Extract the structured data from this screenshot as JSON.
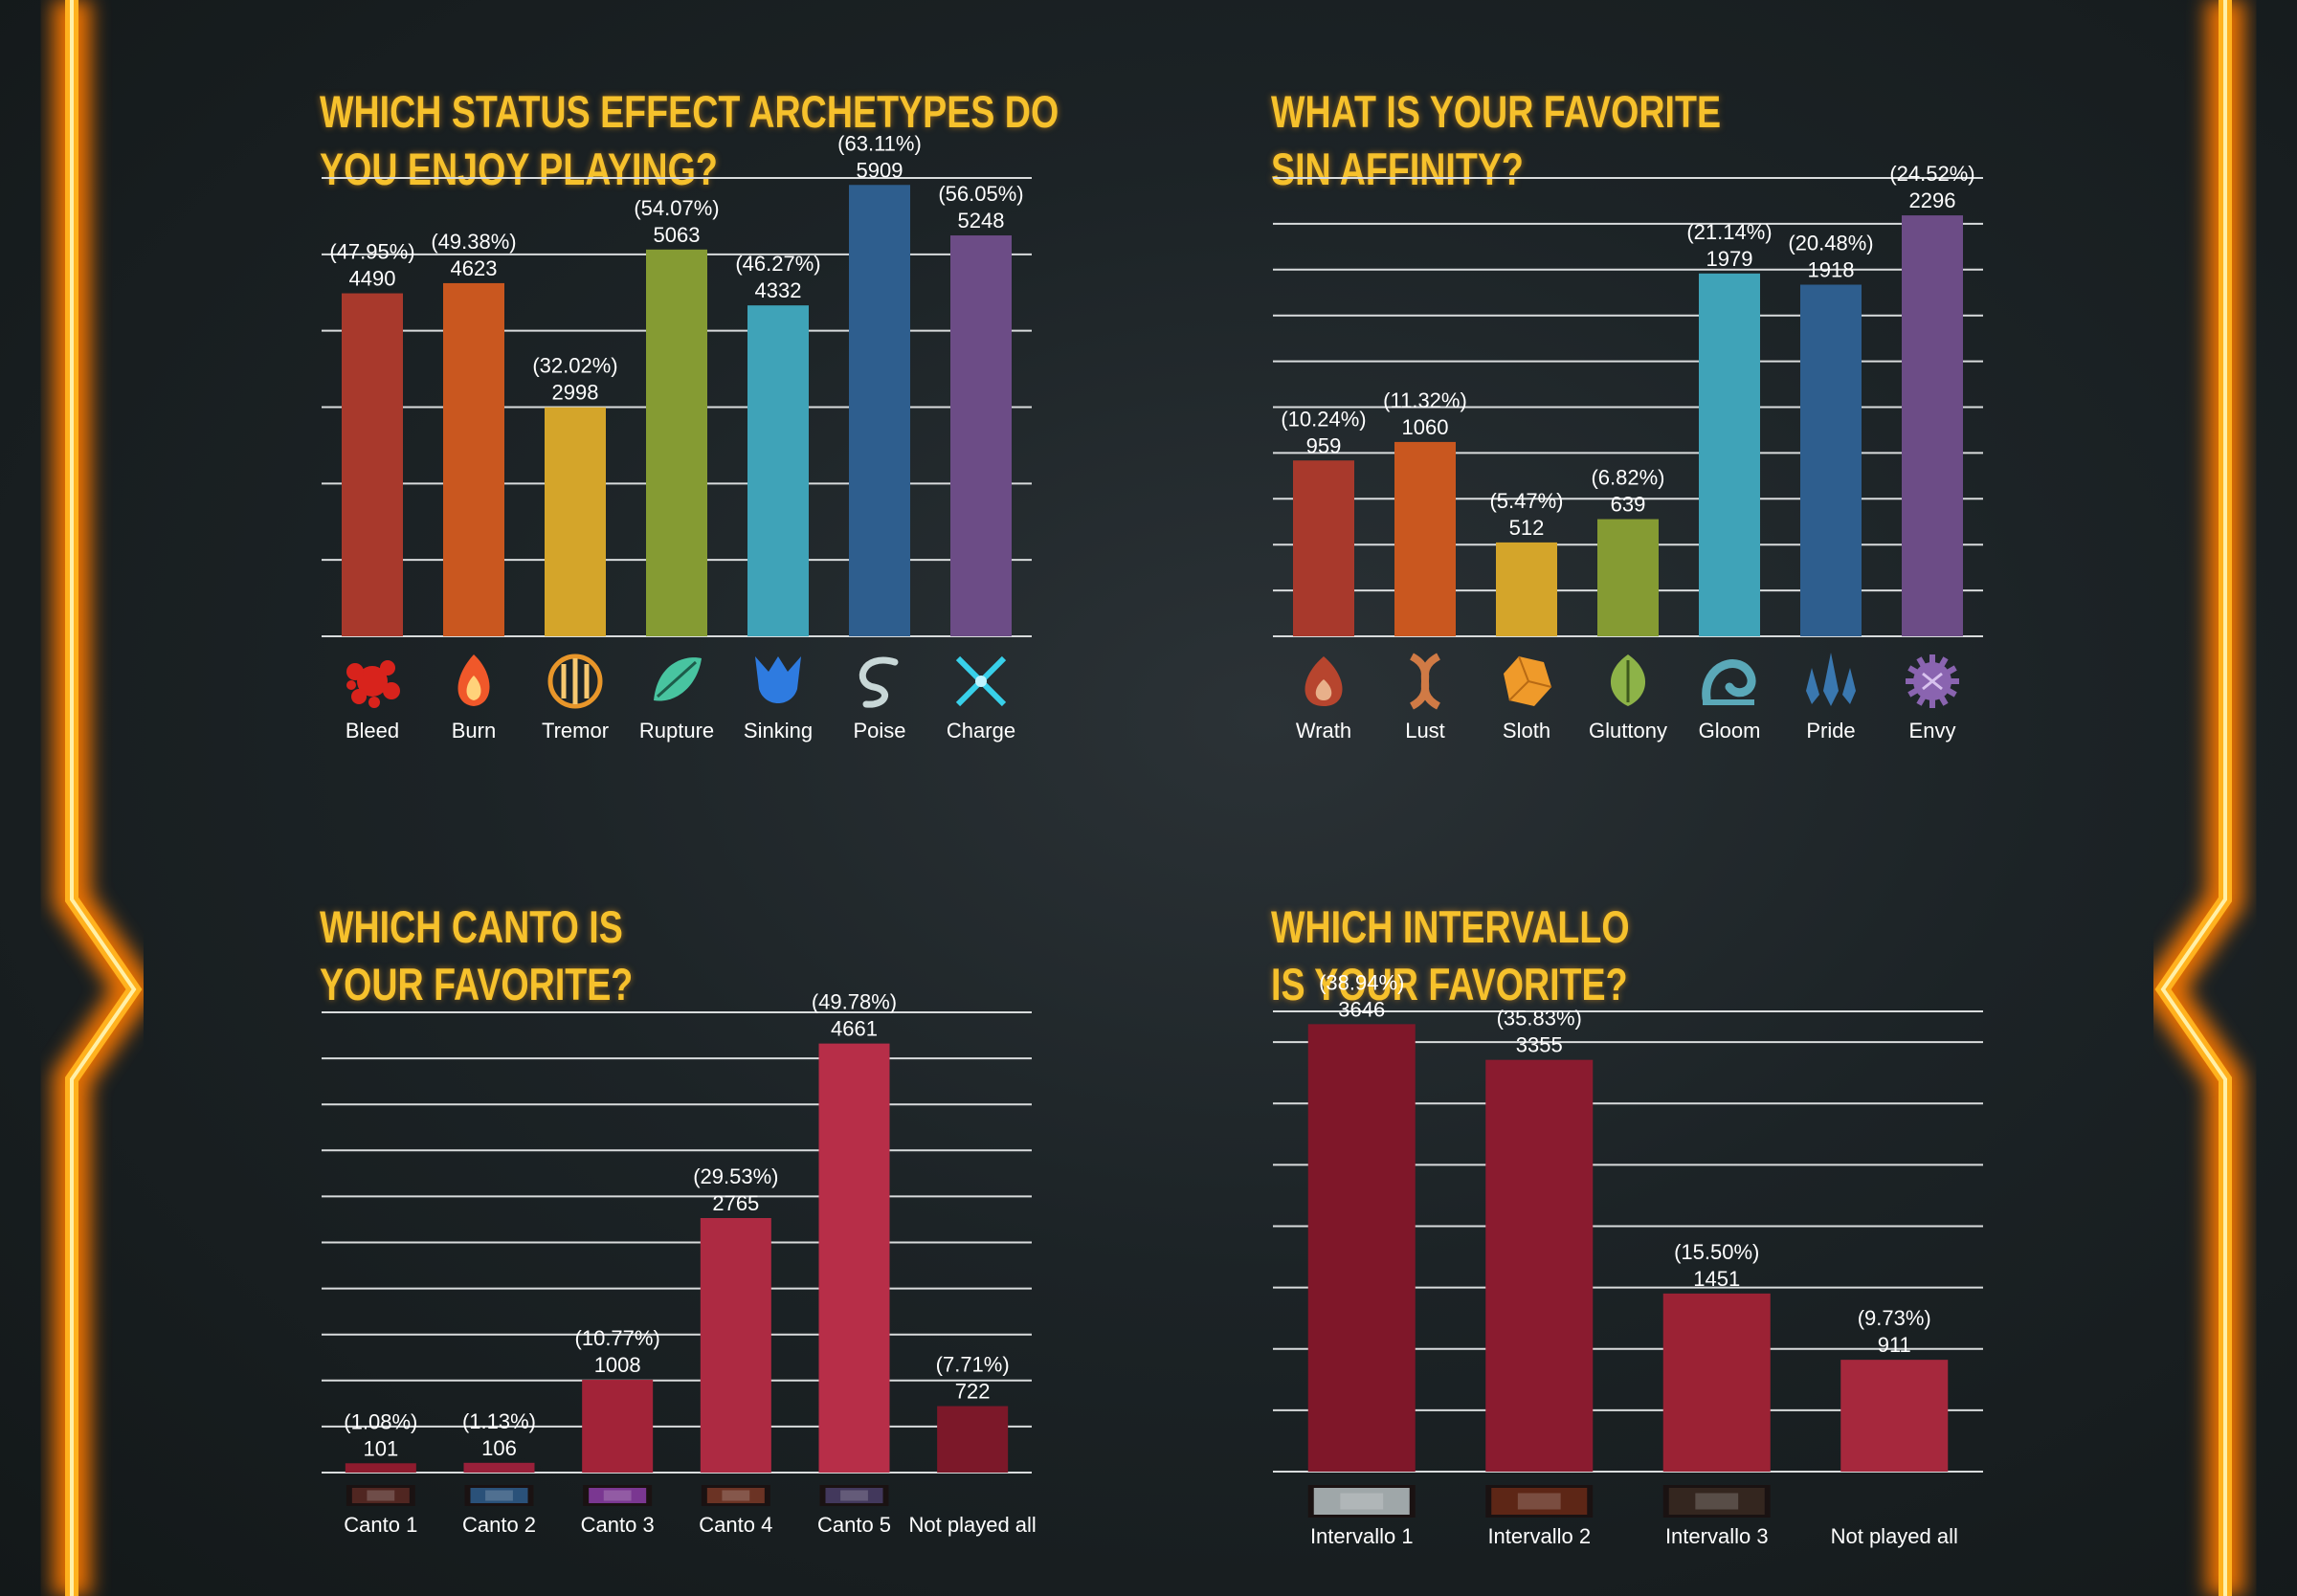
{
  "page": {
    "background": "#1a2023",
    "frame_color": "#ff8a00",
    "title_color": "#f6c12c"
  },
  "chart_data": [
    {
      "type": "bar",
      "title_lines": [
        "WHICH STATUS EFFECT ARCHETYPES DO",
        "YOU ENJOY PLAYING?"
      ],
      "categories": [
        "Bleed",
        "Burn",
        "Tremor",
        "Rupture",
        "Sinking",
        "Poise",
        "Charge"
      ],
      "values": [
        4490,
        4623,
        2998,
        5063,
        4332,
        5909,
        5248
      ],
      "percents": [
        "(47.95%)",
        "(49.38%)",
        "(32.02%)",
        "(54.07%)",
        "(46.27%)",
        "(63.11%)",
        "(56.05%)"
      ],
      "colors": [
        "#a8392c",
        "#c9571f",
        "#d4a52a",
        "#859b33",
        "#3fa3b8",
        "#2e5e8e",
        "#6c4c86"
      ],
      "icons": [
        "blood-splatter-icon",
        "flame-icon",
        "tremor-wave-icon",
        "leaf-shard-icon",
        "sinking-droplet-icon",
        "poise-swirl-icon",
        "charge-spark-icon"
      ],
      "icon_colors": [
        "#d8231c",
        "#f0582a",
        "#e8962a",
        "#48c4a0",
        "#2e7be0",
        "#c8d7d7",
        "#38d0ea"
      ],
      "ylim": [
        0,
        6000
      ],
      "yticks": [
        0,
        1000,
        2000,
        3000,
        4000,
        5000,
        6000
      ],
      "xlabel": "",
      "ylabel": "",
      "grid": true
    },
    {
      "type": "bar",
      "title_lines": [
        "WHAT IS YOUR FAVORITE",
        "SIN AFFINITY?"
      ],
      "categories": [
        "Wrath",
        "Lust",
        "Sloth",
        "Gluttony",
        "Gloom",
        "Pride",
        "Envy"
      ],
      "values": [
        959,
        1060,
        512,
        639,
        1979,
        1918,
        2296
      ],
      "percents": [
        "(10.24%)",
        "(11.32%)",
        "(5.47%)",
        "(6.82%)",
        "(21.14%)",
        "(20.48%)",
        "(24.52%)"
      ],
      "colors": [
        "#a8392c",
        "#c9571f",
        "#d4a52a",
        "#859b33",
        "#3fa3b8",
        "#2e5e8e",
        "#6c4c86"
      ],
      "icons": [
        "wrath-flame-icon",
        "lust-braid-icon",
        "sloth-stone-icon",
        "gluttony-leaf-icon",
        "gloom-wave-icon",
        "pride-spire-icon",
        "envy-gear-icon"
      ],
      "icon_colors": [
        "#b7452e",
        "#d07a45",
        "#ef9a2a",
        "#8db348",
        "#5aa8b8",
        "#3a78b0",
        "#8a64b0"
      ],
      "ylim": [
        0,
        2500
      ],
      "yticks": [
        0,
        250,
        500,
        750,
        1000,
        1250,
        1500,
        1750,
        2000,
        2250,
        2500
      ],
      "xlabel": "",
      "ylabel": "",
      "grid": true
    },
    {
      "type": "bar",
      "title_lines": [
        "WHICH CANTO IS",
        "YOUR FAVORITE?"
      ],
      "categories": [
        "Canto 1",
        "Canto 2",
        "Canto 3",
        "Canto 4",
        "Canto 5",
        "Not played all"
      ],
      "values": [
        101,
        106,
        1008,
        2765,
        4661,
        722
      ],
      "percents": [
        "(1.08%)",
        "(1.13%)",
        "(10.77%)",
        "(29.53%)",
        "(49.78%)",
        "(7.71%)"
      ],
      "colors": [
        "#8e1b2e",
        "#99203a",
        "#a22338",
        "#ad2a42",
        "#b72e48",
        "#7c1829"
      ],
      "thumbs": [
        "canto-1-thumbnail",
        "canto-2-thumbnail",
        "canto-3-thumbnail",
        "canto-4-thumbnail",
        "canto-5-thumbnail",
        ""
      ],
      "thumb_colors": [
        "#5a2a25",
        "#2e5d8c",
        "#8c3ea8",
        "#7a3a28",
        "#4a3f6a",
        ""
      ],
      "ylim": [
        0,
        5000
      ],
      "yticks": [
        0,
        500,
        1000,
        1500,
        2000,
        2500,
        3000,
        3500,
        4000,
        4500,
        5000
      ],
      "xlabel": "",
      "ylabel": "",
      "grid": true
    },
    {
      "type": "bar",
      "title_lines": [
        "WHICH INTERVALLO",
        "IS YOUR FAVORITE?"
      ],
      "categories": [
        "Intervallo 1",
        "Intervallo 2",
        "Intervallo 3",
        "Not played all"
      ],
      "values": [
        3646,
        3355,
        1451,
        911
      ],
      "percents": [
        "(38.94%)",
        "(35.83%)",
        "(15.50%)",
        "(9.73%)"
      ],
      "colors": [
        "#7f1729",
        "#8a1b2f",
        "#9b2234",
        "#a6283d"
      ],
      "thumbs": [
        "intervallo-1-thumbnail",
        "intervallo-2-thumbnail",
        "intervallo-3-thumbnail",
        ""
      ],
      "thumb_colors": [
        "#b7c2c4",
        "#6a2a18",
        "#3a2a22",
        ""
      ],
      "ylim": [
        0,
        3750
      ],
      "yticks": [
        0,
        500,
        1000,
        1500,
        2000,
        2500,
        3000,
        3500,
        3750
      ],
      "xlabel": "",
      "ylabel": "",
      "grid": true
    }
  ]
}
